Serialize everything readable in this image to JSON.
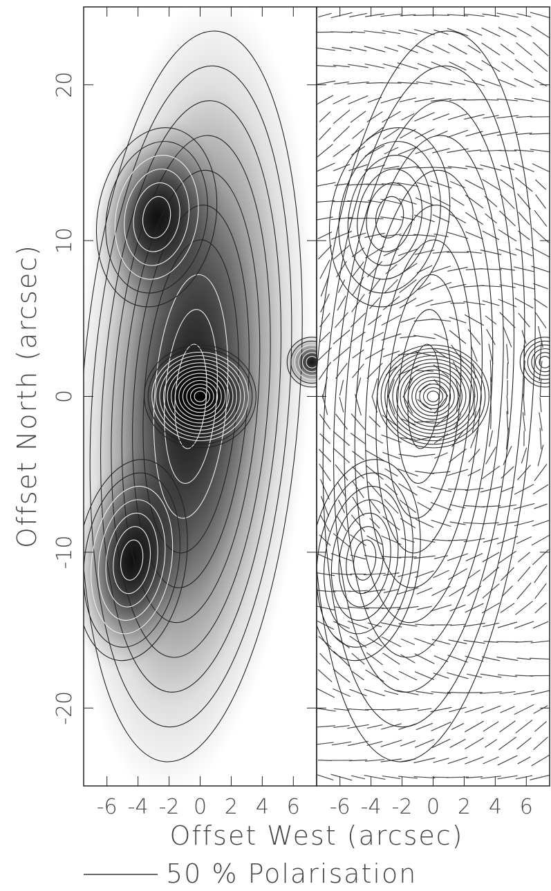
{
  "chart_data": [
    {
      "type": "contour",
      "x_label": "Offset West (arcsec)",
      "y_label": "Offset North (arcsec)",
      "xlim": [
        -7.5,
        7.5
      ],
      "ylim": [
        -25,
        25
      ],
      "xticks": [
        -6,
        -4,
        -2,
        0,
        2,
        4,
        6
      ],
      "yticks": [
        -20,
        -10,
        0,
        10,
        20
      ],
      "greyscale": true
    },
    {
      "type": "contour",
      "xlim": [
        -7.5,
        7.5
      ],
      "ylim": [
        -25,
        25
      ],
      "xticks": [
        -6,
        -4,
        -2,
        0,
        2,
        4,
        6
      ],
      "yticks": [
        -20,
        -10,
        0,
        10,
        20
      ],
      "greyscale": false,
      "vector_scale_label": "50 % Polarisation"
    }
  ]
}
